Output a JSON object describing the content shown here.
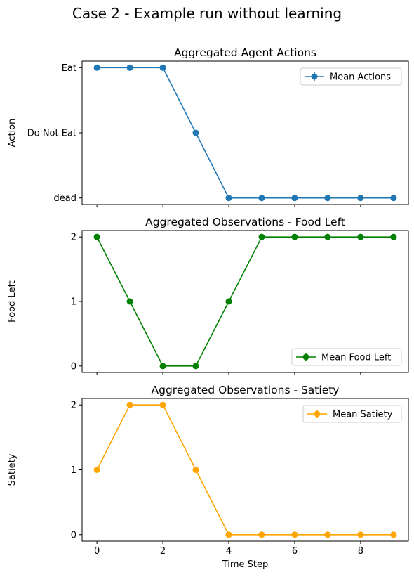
{
  "figure": {
    "suptitle": "Case 2 - Example run without learning"
  },
  "chart_data": [
    {
      "type": "line",
      "title": "Aggregated Agent Actions",
      "xlabel": "",
      "ylabel": "Action",
      "x": [
        0,
        1,
        2,
        3,
        4,
        5,
        6,
        7,
        8,
        9
      ],
      "xlim": [
        -0.45,
        9.45
      ],
      "ylim": [
        -0.1,
        2.1
      ],
      "xticks": [
        0,
        2,
        4,
        6,
        8
      ],
      "xtick_labels": [
        "",
        "",
        "",
        "",
        ""
      ],
      "yticks": [
        0,
        1,
        2
      ],
      "ytick_labels": [
        "dead",
        "Do Not Eat",
        "Eat"
      ],
      "legend_position": "top-right",
      "series": [
        {
          "name": "Mean Actions",
          "color": "#1f77b4",
          "values": [
            2,
            2,
            2,
            1,
            0,
            0,
            0,
            0,
            0,
            0
          ]
        }
      ]
    },
    {
      "type": "line",
      "title": "Aggregated Observations - Food Left",
      "xlabel": "",
      "ylabel": "Food Left",
      "x": [
        0,
        1,
        2,
        3,
        4,
        5,
        6,
        7,
        8,
        9
      ],
      "xlim": [
        -0.45,
        9.45
      ],
      "ylim": [
        -0.1,
        2.1
      ],
      "xticks": [
        0,
        2,
        4,
        6,
        8
      ],
      "xtick_labels": [
        "",
        "",
        "",
        "",
        ""
      ],
      "yticks": [
        0,
        1,
        2
      ],
      "ytick_labels": [
        "0",
        "1",
        "2"
      ],
      "legend_position": "bottom-right",
      "series": [
        {
          "name": "Mean Food Left",
          "color": "#008000",
          "values": [
            2,
            1,
            0,
            0,
            1,
            2,
            2,
            2,
            2,
            2
          ]
        }
      ]
    },
    {
      "type": "line",
      "title": "Aggregated Observations - Satiety",
      "xlabel": "Time Step",
      "ylabel": "Satiety",
      "x": [
        0,
        1,
        2,
        3,
        4,
        5,
        6,
        7,
        8,
        9
      ],
      "xlim": [
        -0.45,
        9.45
      ],
      "ylim": [
        -0.1,
        2.1
      ],
      "xticks": [
        0,
        2,
        4,
        6,
        8
      ],
      "xtick_labels": [
        "0",
        "2",
        "4",
        "6",
        "8"
      ],
      "yticks": [
        0,
        1,
        2
      ],
      "ytick_labels": [
        "0",
        "1",
        "2"
      ],
      "legend_position": "top-right",
      "series": [
        {
          "name": "Mean Satiety",
          "color": "#ffa500",
          "values": [
            1,
            2,
            2,
            1,
            0,
            0,
            0,
            0,
            0,
            0
          ]
        }
      ]
    }
  ]
}
